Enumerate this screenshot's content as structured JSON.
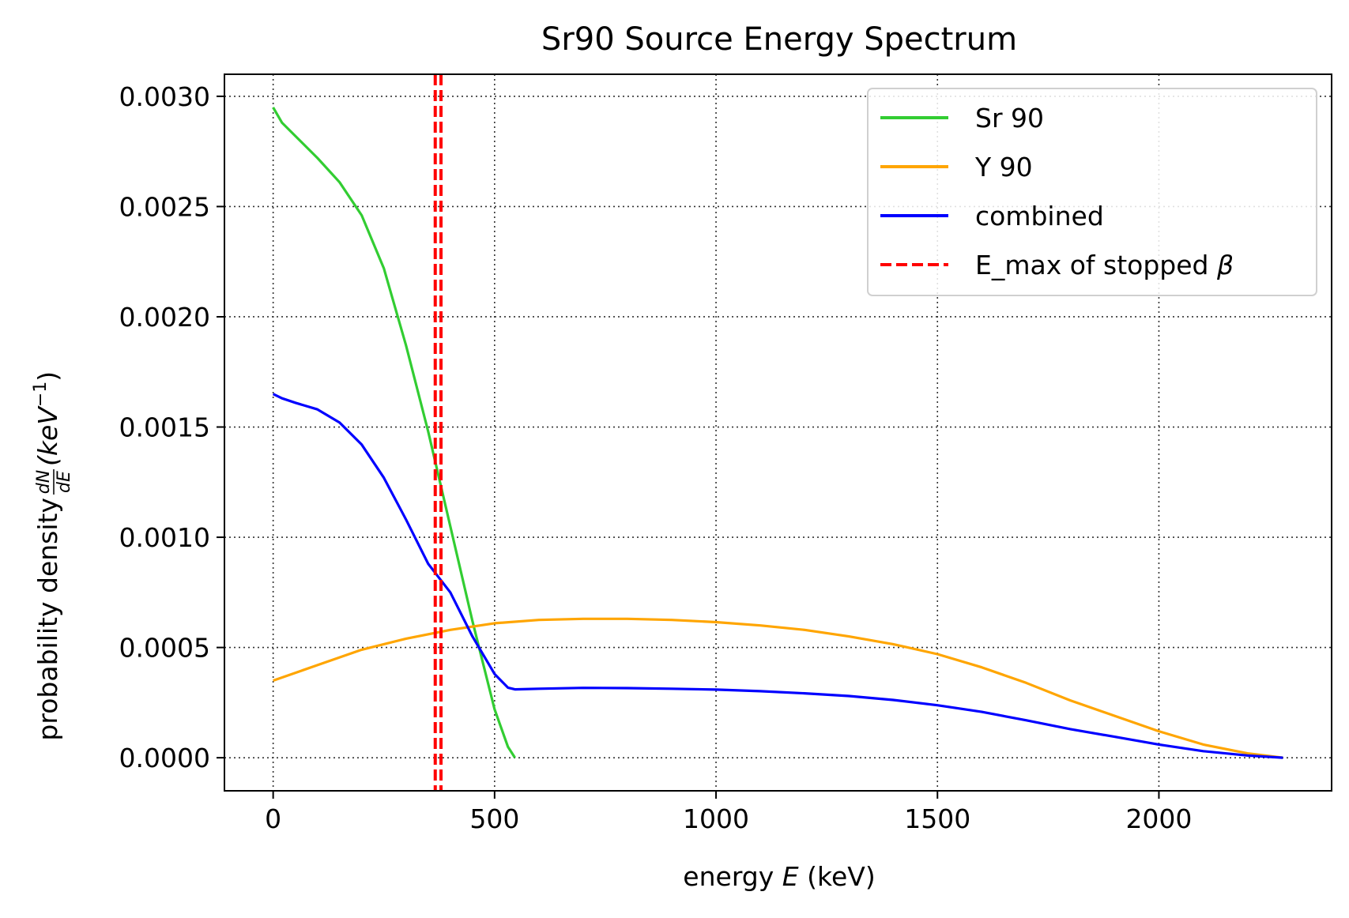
{
  "chart_data": {
    "type": "line",
    "title": "Sr90 Source Energy Spectrum",
    "xlabel": {
      "prefix": "energy ",
      "var": "E",
      "unit": " (keV)"
    },
    "ylabel": {
      "prefix": "probability density ",
      "frac_num": "dN",
      "frac_den": "dE",
      "unit_open": " (keV",
      "unit_sup": "−1",
      "unit_close": ")"
    },
    "xlim": [
      -110,
      2390
    ],
    "ylim": [
      -0.00015,
      0.0031
    ],
    "xticks": [
      0,
      500,
      1000,
      1500,
      2000
    ],
    "xtick_labels": [
      "0",
      "500",
      "1000",
      "1500",
      "2000"
    ],
    "yticks": [
      0,
      0.0005,
      0.001,
      0.0015,
      0.002,
      0.0025,
      0.003
    ],
    "ytick_labels": [
      "0.0000",
      "0.0005",
      "0.0010",
      "0.0015",
      "0.0020",
      "0.0025",
      "0.0030"
    ],
    "grid": true,
    "legend_position": "top-right",
    "series": [
      {
        "name": "Sr 90",
        "color": "#32cd32",
        "x": [
          0,
          20,
          50,
          100,
          150,
          200,
          250,
          300,
          350,
          400,
          450,
          500,
          530,
          546
        ],
        "y": [
          0.00295,
          0.00288,
          0.00282,
          0.00272,
          0.00261,
          0.00246,
          0.00222,
          0.00187,
          0.00148,
          0.00105,
          0.00062,
          0.00022,
          5e-05,
          0.0
        ]
      },
      {
        "name": "Y 90",
        "color": "#ffa500",
        "x": [
          0,
          100,
          200,
          300,
          400,
          500,
          600,
          700,
          800,
          900,
          1000,
          1100,
          1200,
          1300,
          1400,
          1500,
          1600,
          1700,
          1800,
          1900,
          2000,
          2100,
          2200,
          2280
        ],
        "y": [
          0.00035,
          0.00042,
          0.00049,
          0.00054,
          0.00058,
          0.00061,
          0.000625,
          0.00063,
          0.00063,
          0.000625,
          0.000615,
          0.0006,
          0.00058,
          0.00055,
          0.000515,
          0.00047,
          0.00041,
          0.00034,
          0.00026,
          0.00019,
          0.00012,
          6e-05,
          2e-05,
          0.0
        ]
      },
      {
        "name": "combined",
        "color": "#0000ff",
        "x": [
          0,
          20,
          50,
          100,
          150,
          200,
          250,
          300,
          350,
          400,
          450,
          500,
          530,
          546,
          600,
          700,
          800,
          900,
          1000,
          1100,
          1200,
          1300,
          1400,
          1500,
          1600,
          1700,
          1800,
          1900,
          2000,
          2100,
          2200,
          2280
        ],
        "y": [
          0.00165,
          0.00163,
          0.00161,
          0.00158,
          0.00152,
          0.00142,
          0.00127,
          0.00108,
          0.00088,
          0.00075,
          0.00055,
          0.00038,
          0.000318,
          0.00031,
          0.000313,
          0.000317,
          0.000316,
          0.000313,
          0.000309,
          0.000302,
          0.000292,
          0.00028,
          0.000262,
          0.000238,
          0.000208,
          0.00017,
          0.00013,
          9.5e-05,
          6e-05,
          3e-05,
          1e-05,
          0.0
        ]
      },
      {
        "name": "E_max of stopped ",
        "name_math": "β",
        "color": "#ff0000",
        "style": "dashed",
        "vlines": [
          366,
          379
        ]
      }
    ]
  }
}
